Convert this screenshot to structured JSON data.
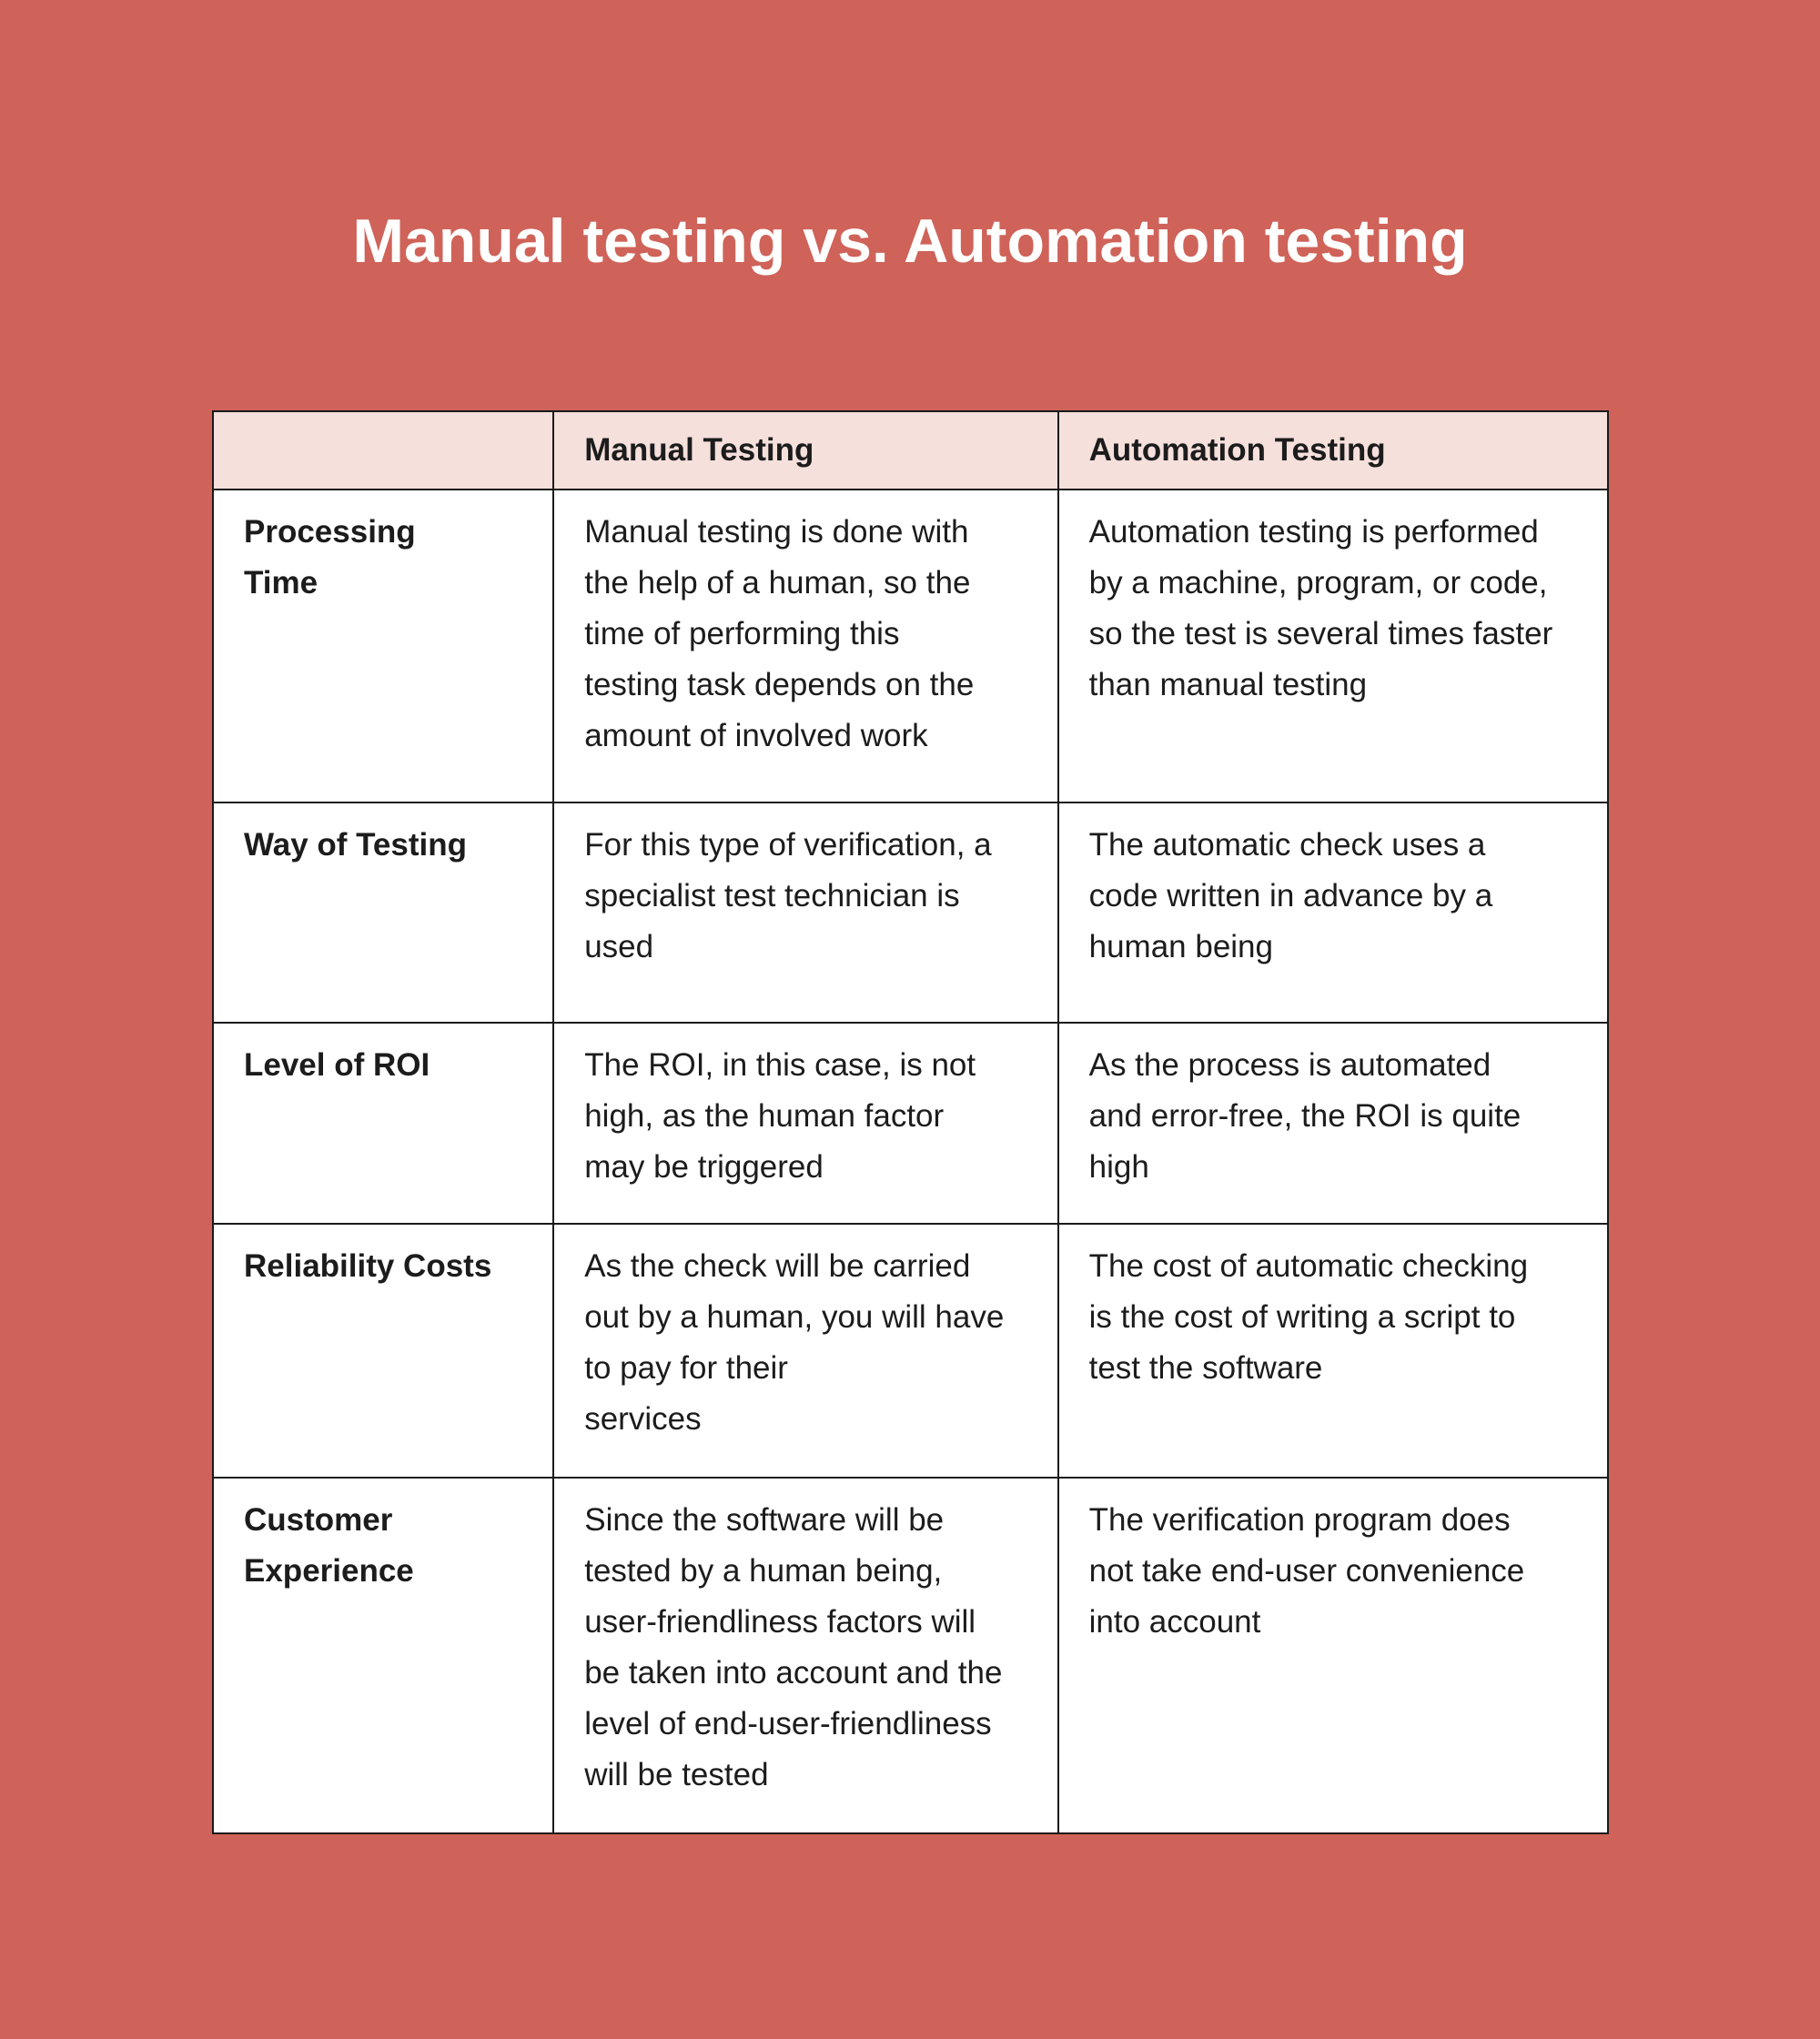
{
  "title": "Manual testing vs. Automation testing",
  "colors": {
    "background": "#CF6359",
    "header_bg": "#F5E0DC",
    "border": "#1a1a1a"
  },
  "table": {
    "headers": [
      "",
      "Manual Testing",
      "Automation Testing"
    ],
    "rows": [
      {
        "label": [
          "Processing",
          "Time"
        ],
        "manual": [
          "Manual testing is done with",
          "the help of a human, so the",
          "time of performing this",
          "testing task depends on the",
          "amount of involved work"
        ],
        "automation": [
          "Automation testing is performed",
          "by a machine, program, or code,",
          "so the test is several times faster",
          "than manual testing"
        ]
      },
      {
        "label": [
          "Way of Testing"
        ],
        "manual": [
          "For this type of verification, a",
          "specialist test technician is",
          "used"
        ],
        "automation": [
          "The automatic check uses a",
          "code written in advance by a",
          "human being"
        ]
      },
      {
        "label": [
          "Level of ROI"
        ],
        "manual": [
          "The ROI, in this case, is not",
          "high, as the human factor",
          "may be triggered"
        ],
        "automation": [
          "As the process is automated",
          "and error-free, the ROI is quite",
          "high"
        ]
      },
      {
        "label": [
          "Reliability Costs"
        ],
        "manual": [
          "As the check will be carried",
          "out by a human, you will have",
          "to pay for their",
          "services"
        ],
        "automation": [
          "The cost of automatic checking",
          "is the cost of writing a script to",
          "test the software"
        ]
      },
      {
        "label": [
          "Customer",
          "Experience"
        ],
        "manual": [
          "Since the software will be",
          "tested by a human being,",
          "user-friendliness factors will",
          "be taken into account and the",
          "level of end-user-friendliness",
          "will be tested"
        ],
        "automation": [
          "The verification program does",
          "not take end-user convenience",
          "into account"
        ]
      }
    ]
  }
}
